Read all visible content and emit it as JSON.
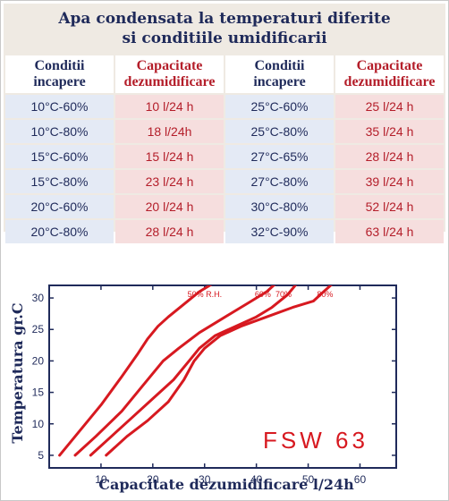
{
  "header": {
    "title_line1": "Apa condensata la temperaturi diferite",
    "title_line2": "si conditiile umidificarii"
  },
  "table": {
    "col_headers": [
      [
        "Conditii",
        "incapere"
      ],
      [
        "Capacitate",
        "dezumidificare"
      ],
      [
        "Conditii",
        "incapere"
      ],
      [
        "Capacitate",
        "dezumidificare"
      ]
    ],
    "rows": [
      [
        "10°C-60%",
        "10 l/24 h",
        "25°C-60%",
        "25 l/24 h"
      ],
      [
        "10°C-80%",
        "18 l/24h",
        "25°C-80%",
        "35 l/24 h"
      ],
      [
        "15°C-60%",
        "15 l/24 h",
        "27°C-65%",
        "28 l/24 h"
      ],
      [
        "15°C-80%",
        "23 l/24 h",
        "27°C-80%",
        "39 l/24 h"
      ],
      [
        "20°C-60%",
        "20 l/24 h",
        "30°C-80%",
        "52 l/24 h"
      ],
      [
        "20°C-80%",
        "28 l/24 h",
        "32°C-90%",
        "63 l/24 h"
      ]
    ]
  },
  "colors": {
    "title": "#1f2a5a",
    "capacity_text": "#b41e2a",
    "condition_bg": "#e4eaf5",
    "capacity_bg": "#f6dede",
    "curve": "#d71920",
    "axis": "#1f2a5a"
  },
  "chart_data": {
    "type": "line",
    "xlabel": "Capacitate dezumidificare l/24h",
    "ylabel": "Temperatura gr.C",
    "xlim": [
      0,
      67
    ],
    "ylim": [
      3,
      32
    ],
    "xticks": [
      10,
      20,
      30,
      40,
      50,
      60
    ],
    "yticks": [
      5,
      10,
      15,
      20,
      25,
      30
    ],
    "grid": false,
    "annotation": "FSW 63",
    "series": [
      {
        "name": "50% R.H.",
        "points": [
          [
            2,
            5
          ],
          [
            5,
            8
          ],
          [
            10,
            13
          ],
          [
            14,
            17.5
          ],
          [
            17,
            21
          ],
          [
            19,
            23.5
          ],
          [
            21,
            25.5
          ],
          [
            23,
            27
          ],
          [
            26,
            29
          ],
          [
            29,
            31
          ],
          [
            32,
            32.5
          ]
        ]
      },
      {
        "name": "60%",
        "points": [
          [
            5,
            5
          ],
          [
            9,
            8
          ],
          [
            14,
            12
          ],
          [
            18,
            16
          ],
          [
            22,
            20
          ],
          [
            25,
            22
          ],
          [
            29,
            24.5
          ],
          [
            33,
            26.5
          ],
          [
            36,
            28
          ],
          [
            39,
            29.5
          ],
          [
            42,
            31
          ],
          [
            44,
            32.5
          ]
        ]
      },
      {
        "name": "70%",
        "points": [
          [
            8,
            5
          ],
          [
            12,
            8
          ],
          [
            16,
            11
          ],
          [
            20,
            14
          ],
          [
            24,
            17
          ],
          [
            27,
            20
          ],
          [
            29,
            22
          ],
          [
            32,
            24
          ],
          [
            36,
            25.5
          ],
          [
            40,
            27
          ],
          [
            43,
            28.5
          ],
          [
            46,
            30.5
          ],
          [
            48,
            32.5
          ]
        ]
      },
      {
        "name": "80%",
        "points": [
          [
            11,
            5
          ],
          [
            15,
            8
          ],
          [
            19,
            10.5
          ],
          [
            23,
            13.5
          ],
          [
            26,
            17
          ],
          [
            28,
            20
          ],
          [
            30,
            22
          ],
          [
            33,
            24
          ],
          [
            37,
            25.5
          ],
          [
            42,
            27
          ],
          [
            47,
            28.5
          ],
          [
            51,
            29.5
          ],
          [
            53,
            31
          ],
          [
            55,
            32.5
          ]
        ]
      }
    ]
  }
}
